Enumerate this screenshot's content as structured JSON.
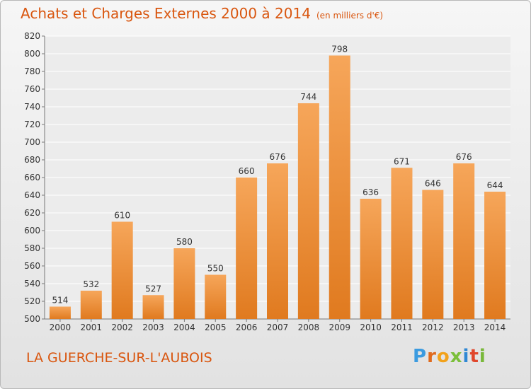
{
  "title": "Achats et Charges Externes 2000 à 2014",
  "subtitle": "(en milliers d'€)",
  "place": "LA GUERCHE-SUR-L'AUBOIS",
  "brand": "Proxiti",
  "colors": {
    "bar_top": "#f6a65a",
    "bar_bottom": "#e07a1f",
    "accent": "#d9560f"
  },
  "chart_data": {
    "type": "bar",
    "categories": [
      "2000",
      "2001",
      "2002",
      "2003",
      "2004",
      "2005",
      "2006",
      "2007",
      "2008",
      "2009",
      "2010",
      "2011",
      "2012",
      "2013",
      "2014"
    ],
    "values": [
      514,
      532,
      610,
      527,
      580,
      550,
      660,
      676,
      744,
      798,
      636,
      671,
      646,
      676,
      644
    ],
    "ylim": [
      500,
      820
    ],
    "yticks": [
      500,
      520,
      540,
      560,
      580,
      600,
      620,
      640,
      660,
      680,
      700,
      720,
      740,
      760,
      780,
      800,
      820
    ],
    "grid": true
  }
}
